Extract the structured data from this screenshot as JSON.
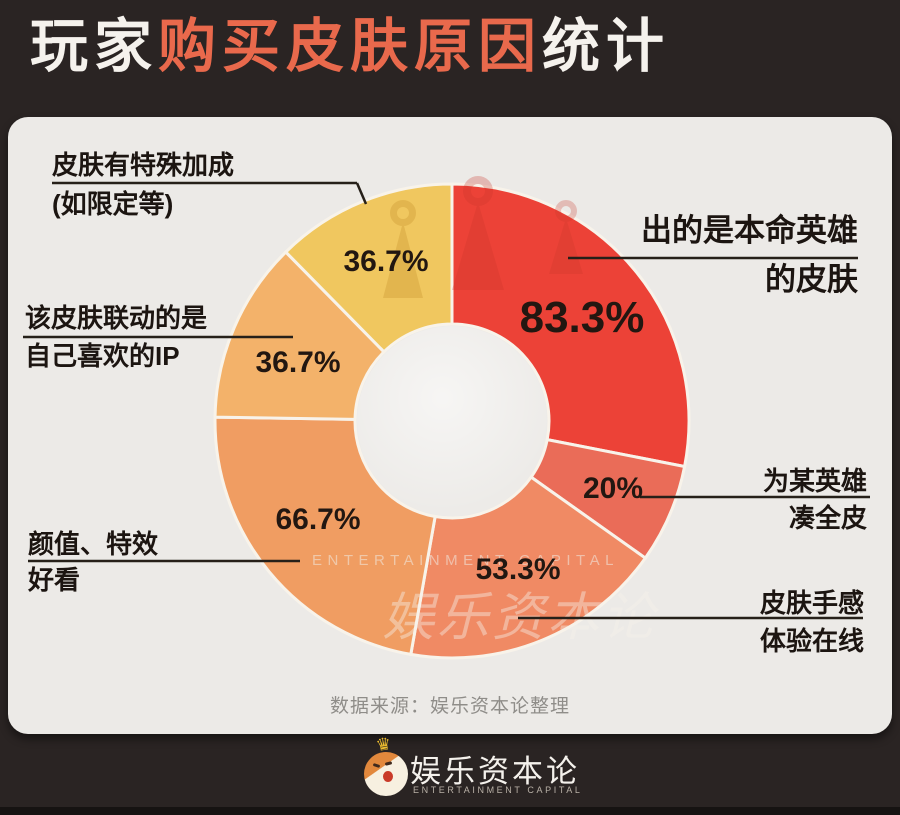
{
  "title": {
    "part1": "玩家",
    "part2": "购买皮肤原因",
    "part3": "统计"
  },
  "chart_data": {
    "type": "pie",
    "donut": true,
    "title": "玩家购买皮肤原因统计",
    "start_angle_deg": 0,
    "direction": "clockwise",
    "value_unit": "% of respondents (multi-select); arc angles proportional to value/sum",
    "segments": [
      {
        "label": "出的是本命英雄的皮肤",
        "value": 83.3,
        "display": "83.3%",
        "color": "#EC4237"
      },
      {
        "label": "为某英雄凑全皮",
        "value": 20,
        "display": "20%",
        "color": "#EA6C58"
      },
      {
        "label": "皮肤手感体验在线",
        "value": 53.3,
        "display": "53.3%",
        "color": "#F08A64"
      },
      {
        "label": "颜值、特效好看",
        "value": 66.7,
        "display": "66.7%",
        "color": "#F09D62"
      },
      {
        "label": "该皮肤联动的是自己喜欢的IP",
        "value": 36.7,
        "display": "36.7%",
        "color": "#F3B26A"
      },
      {
        "label": "皮肤有特殊加成(如限定等)",
        "value": 36.7,
        "display": "36.7%",
        "color": "#F0C75F"
      }
    ]
  },
  "callouts": {
    "main_hero": {
      "line1": "出的是本命英雄",
      "line2": "的皮肤"
    },
    "collect_all": {
      "line1": "为某英雄",
      "line2": "凑全皮"
    },
    "feel": {
      "line1": "皮肤手感",
      "line2": "体验在线"
    },
    "looks": {
      "line1": "颜值、特效",
      "line2": "好看"
    },
    "ip": {
      "line1": "该皮肤联动的是",
      "line2": "自己喜欢的IP"
    },
    "bonus": {
      "line1": "皮肤有特殊加成",
      "line2": "(如限定等)"
    }
  },
  "source_note": "数据来源：娱乐资本论整理",
  "watermark": {
    "cn": "娱乐资本论",
    "en": "ENTERTAINMENT CAPITAL"
  },
  "footer": {
    "brand_cn": "娱乐资本论",
    "brand_en": "ENTERTAINMENT CAPITAL"
  },
  "icons": {
    "crown": "♛"
  },
  "colors": {
    "background": "#2A2423",
    "panel": "#ECEAE7",
    "title_accent": "#E9694C",
    "divider": "#F8F3EA",
    "label_text": "#1C1511",
    "muted_text": "#8F8D89"
  }
}
